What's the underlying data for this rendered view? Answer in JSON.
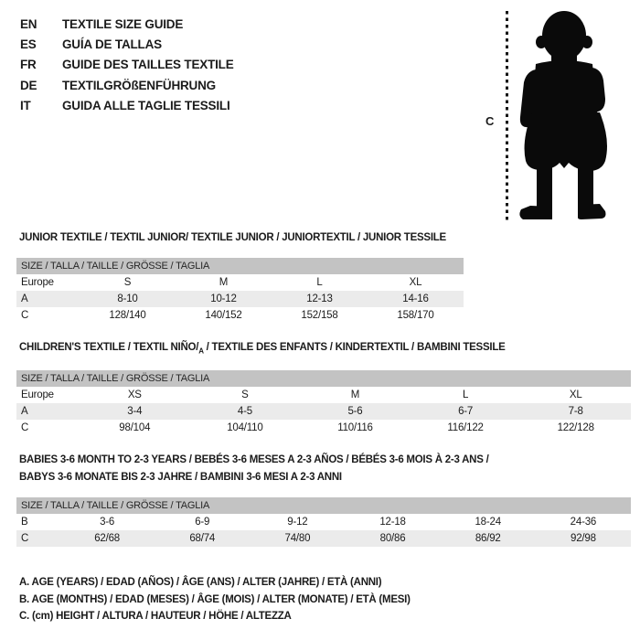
{
  "page": {
    "text_color": "#1b1b1b",
    "header_bar_color": "#c3c3c3",
    "alt_row_color": "#ebebeb",
    "silhouette_color": "#0a0a0a"
  },
  "languages": [
    {
      "code": "EN",
      "label": "TEXTILE SIZE GUIDE"
    },
    {
      "code": "ES",
      "label": "GUÍA DE TALLAS"
    },
    {
      "code": "FR",
      "label": "GUIDE DES TAILLES TEXTILE"
    },
    {
      "code": "DE",
      "label": "TEXTILGRÖßENFÜHRUNG"
    },
    {
      "code": "IT",
      "label": "GUIDA ALLE TAGLIE TESSILI"
    }
  ],
  "figure": {
    "label": "C",
    "icon": "toddler-silhouette"
  },
  "size_header": "SIZE / TALLA / TAILLE / GRÖSSE / TAGLIA",
  "tables": [
    {
      "id": "junior-textile",
      "title_lines": [
        [
          {
            "t": "JUNIOR TEXTILE / TEXTIL JUNIOR/ TEXTILE JUNIOR / JUNIORTEXTIL / JUNIOR TESSILE"
          }
        ]
      ],
      "rows": [
        {
          "label": "Europe",
          "values": [
            "S",
            "M",
            "L",
            "XL"
          ]
        },
        {
          "label": "A",
          "values": [
            "8-10",
            "10-12",
            "12-13",
            "14-16"
          ]
        },
        {
          "label": "C",
          "values": [
            "128/140",
            "140/152",
            "152/158",
            "158/170"
          ]
        }
      ]
    },
    {
      "id": "childrens-textile",
      "title_lines": [
        [
          {
            "t": "CHILDREN'S TEXTILE / TEXTIL NIÑO/"
          },
          {
            "t": "A",
            "sub": true
          },
          {
            "t": " / TEXTILE DES ENFANTS / KINDERTEXTIL / BAMBINI TESSILE"
          }
        ]
      ],
      "rows": [
        {
          "label": "Europe",
          "values": [
            "XS",
            "S",
            "M",
            "L",
            "XL"
          ]
        },
        {
          "label": "A",
          "values": [
            "3-4",
            "4-5",
            "5-6",
            "6-7",
            "7-8"
          ]
        },
        {
          "label": "C",
          "values": [
            "98/104",
            "104/110",
            "110/116",
            "116/122",
            "122/128"
          ]
        }
      ]
    },
    {
      "id": "babies-textile",
      "title_lines": [
        [
          {
            "t": "BABIES 3-6 MONTH TO 2-3 YEARS / BEBÉS 3-6 MESES A 2-3 AÑOS / BÉBÉS 3-6 MOIS À 2-3 ANS /"
          }
        ],
        [
          {
            "t": "BABYS 3-6 MONATE BIS 2-3 JAHRE / BAMBINI 3-6 MESI A 2-3 ANNI"
          }
        ]
      ],
      "rows": [
        {
          "label": "B",
          "values": [
            "3-6",
            "6-9",
            "9-12",
            "12-18",
            "18-24",
            "24-36"
          ]
        },
        {
          "label": "C",
          "values": [
            "62/68",
            "68/74",
            "74/80",
            "80/86",
            "86/92",
            "92/98"
          ]
        }
      ]
    }
  ],
  "legend": [
    "A. AGE (YEARS) / EDAD (AÑOS) / ÂGE (ANS) / ALTER (JAHRE) / ETÀ (ANNI)",
    "B. AGE (MONTHS) / EDAD (MESES) / ÂGE (MOIS) / ALTER (MONATE) / ETÀ (MESI)",
    "C. (cm) HEIGHT / ALTURA / HAUTEUR / HÖHE / ALTEZZA"
  ]
}
